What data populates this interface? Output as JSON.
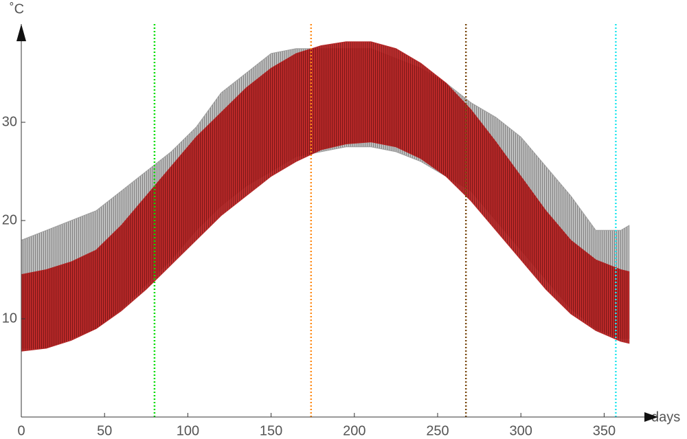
{
  "chart_data": {
    "type": "band",
    "y_label": "˚C",
    "x_label": "days",
    "xlim": [
      0,
      375
    ],
    "ylim": [
      0,
      40
    ],
    "xticks": [
      0,
      50,
      100,
      150,
      200,
      250,
      300,
      350
    ],
    "yticks": [
      10,
      20,
      30
    ],
    "x": [
      0,
      15,
      30,
      45,
      60,
      75,
      90,
      105,
      120,
      135,
      150,
      165,
      180,
      195,
      210,
      225,
      240,
      255,
      270,
      285,
      300,
      315,
      330,
      345,
      360,
      365
    ],
    "series": [
      {
        "color": "#8c8c8c",
        "lower": [
          7,
          7,
          8,
          9,
          11,
          13.5,
          16,
          19,
          21.5,
          23.5,
          25,
          26.5,
          27,
          27.5,
          27.5,
          27,
          26,
          24.5,
          23,
          20,
          17,
          14,
          11,
          9,
          8,
          8
        ],
        "upper": [
          18,
          19,
          20,
          21,
          23,
          25,
          27,
          29.5,
          33,
          35,
          37,
          37.5,
          37.5,
          37.5,
          37.5,
          36.5,
          35.5,
          34,
          32,
          30.5,
          28.5,
          25.5,
          22.5,
          19,
          19,
          19.5
        ]
      },
      {
        "color": "#b01818",
        "lower": [
          6.7,
          7,
          7.8,
          9,
          10.8,
          13,
          15.5,
          18,
          20.5,
          22.5,
          24.5,
          26,
          27.2,
          27.8,
          28,
          27.5,
          26.3,
          24.5,
          22,
          19,
          16,
          13,
          10.5,
          8.8,
          7.7,
          7.5
        ],
        "upper": [
          14.5,
          15,
          15.8,
          17,
          19.5,
          22.5,
          25.5,
          28.5,
          31,
          33.5,
          35.5,
          37,
          37.8,
          38.2,
          38.2,
          37.5,
          36,
          34,
          31.3,
          28,
          24.5,
          21,
          18,
          16,
          15,
          14.8
        ]
      }
    ],
    "vlines": [
      {
        "x": 80,
        "color": "#00dd00"
      },
      {
        "x": 174,
        "color": "#ff8c1a"
      },
      {
        "x": 267,
        "color": "#7a4a12"
      },
      {
        "x": 357,
        "color": "#22e6ee"
      }
    ]
  }
}
